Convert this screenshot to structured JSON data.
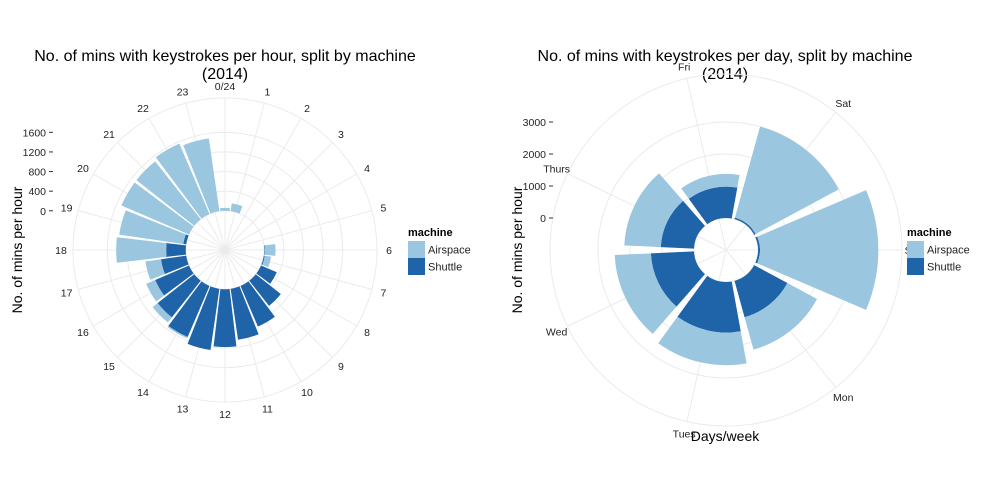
{
  "chart_data": [
    {
      "type": "bar",
      "coord": "polar",
      "stacked": true,
      "title": "No. of mins with keystrokes per hour, split by machine",
      "title_line2": "(2014)",
      "xlabel": "",
      "ylabel": "No. of mins per hour",
      "categories": [
        "0/24",
        "1",
        "2",
        "3",
        "4",
        "5",
        "6",
        "7",
        "8",
        "9",
        "10",
        "11",
        "12",
        "13",
        "14",
        "15",
        "16",
        "17",
        "18",
        "19",
        "20",
        "21",
        "22",
        "23"
      ],
      "yticks": [
        0,
        400,
        800,
        1200,
        1600
      ],
      "ylim": [
        -800,
        2300
      ],
      "series": [
        {
          "name": "Shuttle",
          "color": "#1f63a8",
          "values": [
            0,
            0,
            0,
            0,
            0,
            0,
            10,
            20,
            350,
            650,
            900,
            1050,
            1180,
            1260,
            1130,
            950,
            750,
            520,
            400,
            60,
            0,
            0,
            0,
            0
          ]
        },
        {
          "name": "Airspace",
          "color": "#9ac6df",
          "values": [
            60,
            160,
            0,
            0,
            0,
            0,
            220,
            130,
            0,
            0,
            0,
            0,
            0,
            0,
            30,
            130,
            200,
            320,
            1020,
            1320,
            1500,
            1500,
            1560,
            1500
          ]
        }
      ],
      "grid": true,
      "legend": {
        "title": "machine",
        "position": "right",
        "items": [
          "Airspace",
          "Shuttle"
        ]
      }
    },
    {
      "type": "bar",
      "coord": "polar",
      "stacked": true,
      "title": "No. of mins with keystrokes per day, split by machine",
      "title_line2": "(2014)",
      "xlabel": "Days/week",
      "ylabel": "No. of mins per hour",
      "categories": [
        "Sun",
        "Mon",
        "Tues",
        "Wed",
        "Thurs",
        "Fri",
        "Sat"
      ],
      "yticks": [
        0,
        1000,
        2000,
        3000
      ],
      "ylim": [
        -1000,
        4500
      ],
      "series": [
        {
          "name": "Shuttle",
          "color": "#1f63a8",
          "values": [
            60,
            1180,
            1580,
            1350,
            1040,
            980,
            50
          ]
        },
        {
          "name": "Airspace",
          "color": "#9ac6df",
          "values": [
            3700,
            1050,
            1020,
            1130,
            1140,
            400,
            2950
          ]
        }
      ],
      "grid": true,
      "legend": {
        "title": "machine",
        "position": "right",
        "items": [
          "Airspace",
          "Shuttle"
        ]
      }
    }
  ]
}
